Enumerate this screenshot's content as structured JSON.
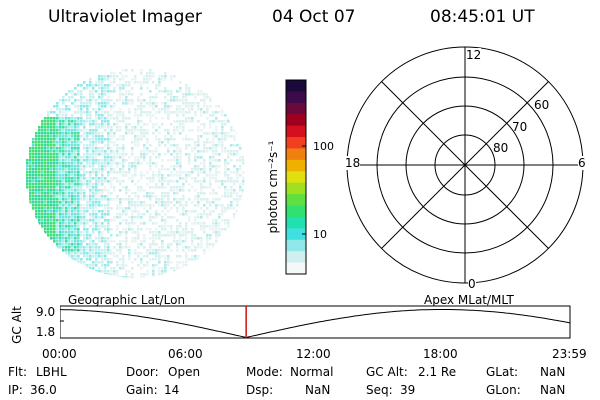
{
  "header": {
    "title": "Ultraviolet Imager",
    "date": "04 Oct 07",
    "time": "08:45:01 UT"
  },
  "colorbar": {
    "unit_label": "photon cm⁻²s⁻¹",
    "ticks": [
      "100",
      "10"
    ],
    "colors": [
      "#1a0a3a",
      "#3a0a4a",
      "#6a0a3a",
      "#a00020",
      "#d41020",
      "#f04020",
      "#f08010",
      "#f0b000",
      "#e0e010",
      "#a0e020",
      "#60e040",
      "#30e070",
      "#20e0b0",
      "#40e0e0",
      "#90e8e8",
      "#d0f0f0",
      "#f4f8f8"
    ]
  },
  "polar": {
    "lat_labels": [
      "60",
      "70",
      "80"
    ],
    "mlt_labels": {
      "top": "12",
      "left": "18",
      "right": "6",
      "bottom": "0"
    }
  },
  "timeline": {
    "axis_label": "GC Alt",
    "y_ticks": [
      "9.0",
      "1.8"
    ],
    "left_label": "Geographic Lat/Lon",
    "right_label": "Apex  MLat/MLT",
    "x_ticks": [
      "00:00",
      "06:00",
      "12:00",
      "18:00",
      "23:59"
    ],
    "marker_time_fraction": 0.365
  },
  "info": {
    "row1": [
      {
        "label": "Flt:",
        "value": "LBHL"
      },
      {
        "label": "Door:",
        "value": "Open"
      },
      {
        "label": "Mode:",
        "value": "Normal"
      },
      {
        "label": "GC Alt:",
        "value": "2.1 Re"
      },
      {
        "label": "GLat:",
        "value": "NaN"
      }
    ],
    "row2": [
      {
        "label": "IP:",
        "value": "36.0"
      },
      {
        "label": "Gain:",
        "value": "14"
      },
      {
        "label": "Dsp:",
        "value": "NaN"
      },
      {
        "label": "Seq:",
        "value": "39"
      },
      {
        "label": "GLon:",
        "value": "NaN"
      }
    ]
  }
}
